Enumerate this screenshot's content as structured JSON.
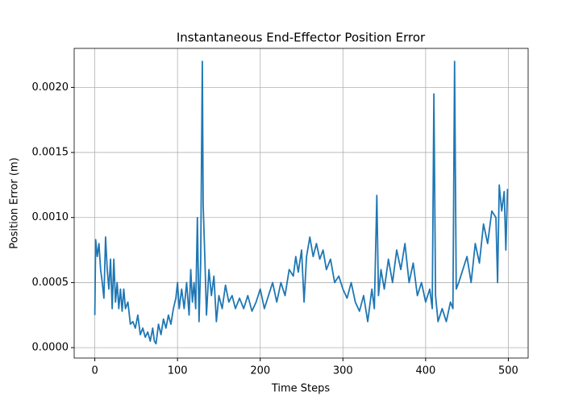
{
  "chart_data": {
    "type": "line",
    "title": "Instantaneous End-Effector Position Error",
    "x_label": "Time Steps",
    "y_label": "Position Error (m)",
    "x": [
      0,
      1,
      3,
      5,
      7,
      9,
      11,
      13,
      15,
      17,
      19,
      21,
      23,
      25,
      27,
      29,
      31,
      33,
      35,
      37,
      40,
      43,
      46,
      49,
      52,
      55,
      58,
      61,
      64,
      67,
      70,
      72,
      74,
      77,
      80,
      83,
      86,
      89,
      92,
      95,
      98,
      100,
      102,
      105,
      108,
      111,
      114,
      116,
      118,
      120,
      122,
      124,
      126,
      128,
      130,
      131,
      133,
      135,
      138,
      141,
      144,
      147,
      150,
      154,
      158,
      162,
      166,
      170,
      175,
      180,
      185,
      190,
      195,
      200,
      205,
      210,
      215,
      220,
      225,
      230,
      235,
      240,
      243,
      246,
      250,
      253,
      256,
      260,
      264,
      268,
      272,
      276,
      280,
      285,
      290,
      295,
      300,
      305,
      310,
      315,
      320,
      325,
      330,
      335,
      338,
      341,
      343,
      346,
      350,
      355,
      360,
      365,
      370,
      375,
      380,
      385,
      390,
      395,
      400,
      405,
      408,
      410,
      412,
      415,
      420,
      425,
      430,
      433,
      435,
      437,
      440,
      445,
      450,
      455,
      460,
      465,
      470,
      475,
      480,
      485,
      487,
      489,
      492,
      495,
      497,
      499
    ],
    "series": [
      {
        "name": "Position Error",
        "color": "#1f77b4",
        "values": [
          0.00025,
          0.00083,
          0.0007,
          0.0008,
          0.0006,
          0.0005,
          0.00038,
          0.00085,
          0.0006,
          0.00045,
          0.00068,
          0.0003,
          0.00068,
          0.00035,
          0.0005,
          0.0003,
          0.00045,
          0.00028,
          0.00045,
          0.0003,
          0.00035,
          0.00018,
          0.0002,
          0.00015,
          0.00025,
          0.0001,
          0.00015,
          8e-05,
          0.00012,
          5e-05,
          0.00015,
          5e-05,
          3e-05,
          0.00018,
          0.0001,
          0.00022,
          0.00015,
          0.00025,
          0.00018,
          0.0003,
          0.00038,
          0.0005,
          0.0003,
          0.00045,
          0.0003,
          0.0005,
          0.00025,
          0.0006,
          0.00035,
          0.0005,
          0.0003,
          0.001,
          0.0002,
          0.00065,
          0.0022,
          0.0011,
          0.0007,
          0.00025,
          0.0006,
          0.0004,
          0.00055,
          0.0002,
          0.0004,
          0.0003,
          0.00048,
          0.00035,
          0.0004,
          0.0003,
          0.00038,
          0.0003,
          0.0004,
          0.00028,
          0.00035,
          0.00045,
          0.0003,
          0.0004,
          0.0005,
          0.00035,
          0.0005,
          0.0004,
          0.0006,
          0.00055,
          0.0007,
          0.00058,
          0.00075,
          0.00035,
          0.0007,
          0.00085,
          0.0007,
          0.0008,
          0.00068,
          0.00075,
          0.0006,
          0.00068,
          0.0005,
          0.00055,
          0.00045,
          0.00038,
          0.0005,
          0.00035,
          0.00028,
          0.0004,
          0.0002,
          0.00045,
          0.0003,
          0.00117,
          0.0004,
          0.0006,
          0.00045,
          0.00068,
          0.0005,
          0.00075,
          0.0006,
          0.0008,
          0.0005,
          0.00065,
          0.0004,
          0.0005,
          0.00035,
          0.00045,
          0.0003,
          0.00195,
          0.0004,
          0.0002,
          0.0003,
          0.0002,
          0.00035,
          0.0003,
          0.0022,
          0.00045,
          0.0005,
          0.0006,
          0.0007,
          0.0005,
          0.0008,
          0.00065,
          0.00095,
          0.0008,
          0.00105,
          0.001,
          0.0005,
          0.00125,
          0.00105,
          0.0012,
          0.00075,
          0.00122
        ]
      }
    ],
    "xlim": [
      -24.95,
      523.95
    ],
    "xticks": [
      0,
      100,
      200,
      300,
      400,
      500
    ],
    "ylim": [
      -8e-05,
      0.0023
    ],
    "yticks": [
      {
        "value": 0,
        "label": "0.0000"
      },
      {
        "value": 0.0005,
        "label": "0.0005"
      },
      {
        "value": 0.001,
        "label": "0.0010"
      },
      {
        "value": 0.0015,
        "label": "0.0015"
      },
      {
        "value": 0.002,
        "label": "0.0020"
      }
    ],
    "grid": true
  }
}
